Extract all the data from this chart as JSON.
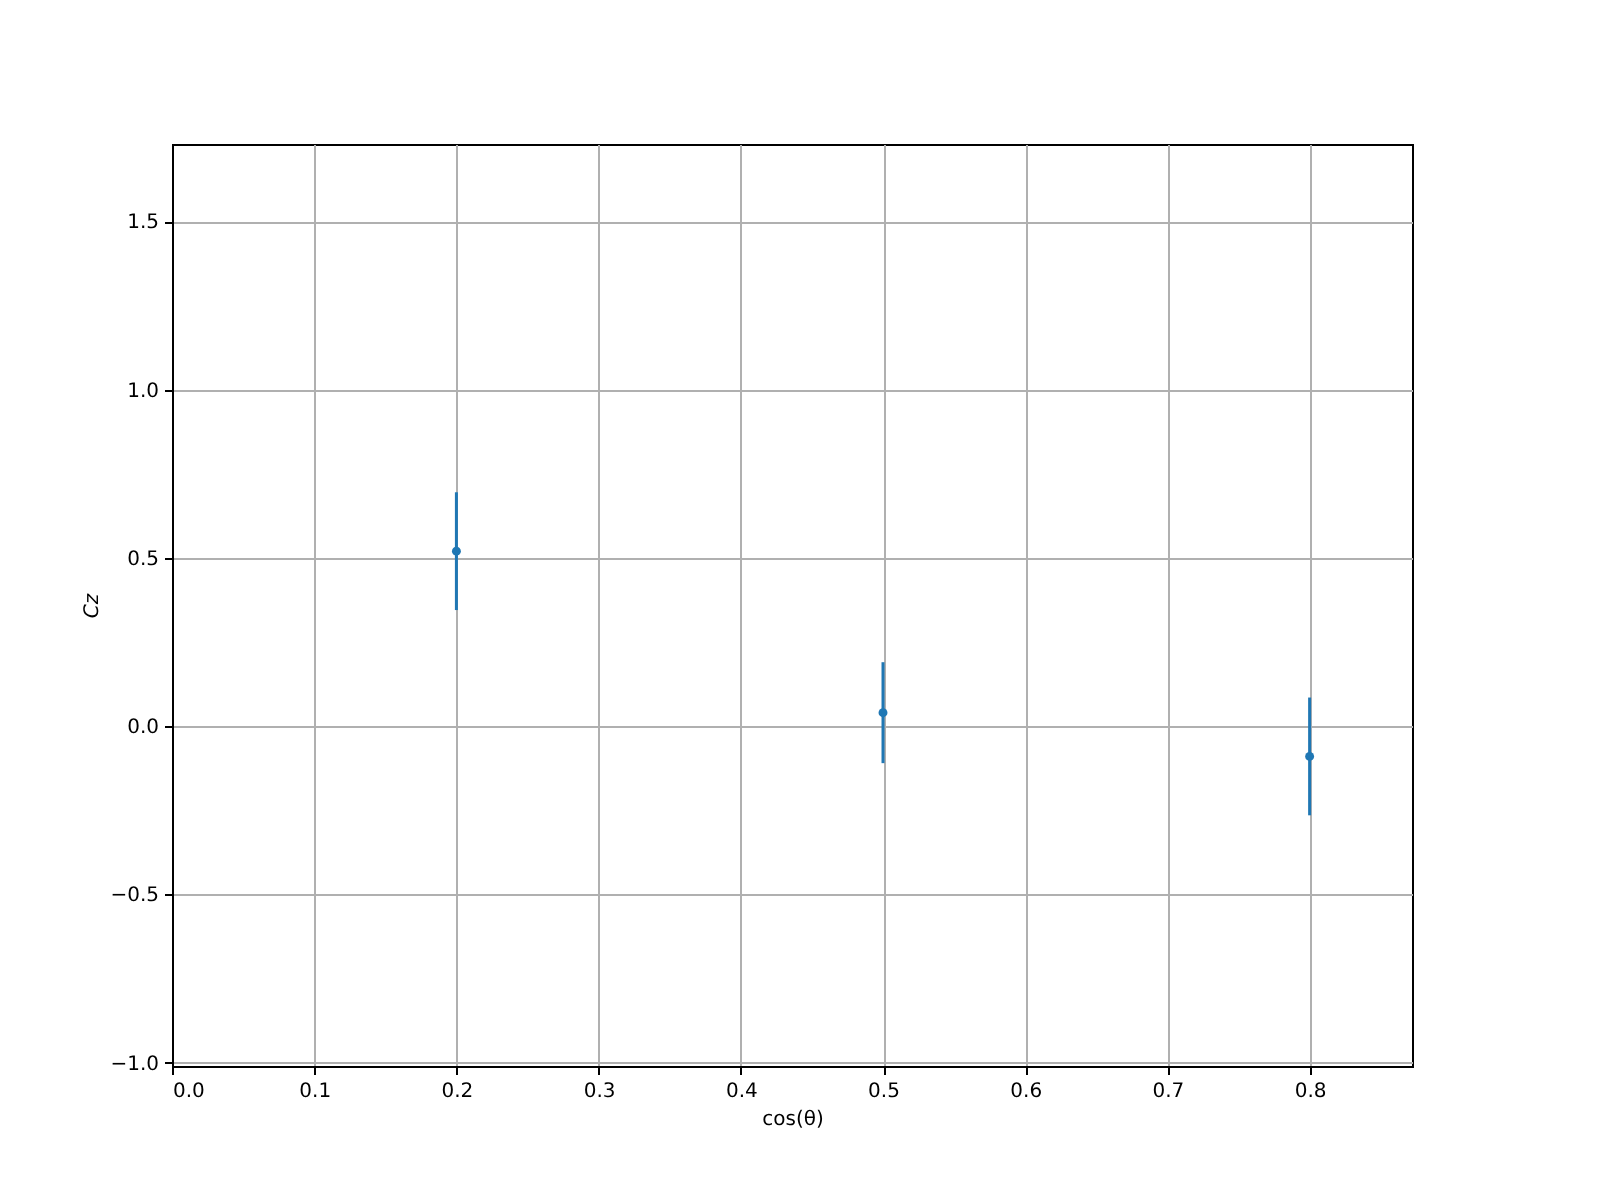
{
  "chart_data": {
    "type": "scatter",
    "xlabel": "cos(θ)",
    "ylabel": "Cz",
    "x": [
      0.2,
      0.5,
      0.8
    ],
    "series": [
      {
        "color": "#1f77b4",
        "values": [
          0.52,
          0.04,
          -0.09
        ],
        "errors": [
          0.175,
          0.15,
          0.175
        ]
      }
    ],
    "xlim": [
      0,
      0.872
    ],
    "ylim": [
      -1.01,
      1.73
    ],
    "xticks": [
      {
        "value": 0,
        "label": "0.0"
      },
      {
        "value": 0.1,
        "label": "0.1"
      },
      {
        "value": 0.2,
        "label": "0.2"
      },
      {
        "value": 0.3,
        "label": "0.3"
      },
      {
        "value": 0.4,
        "label": "0.4"
      },
      {
        "value": 0.5,
        "label": "0.5"
      },
      {
        "value": 0.6,
        "label": "0.6"
      },
      {
        "value": 0.7,
        "label": "0.7"
      },
      {
        "value": 0.8,
        "label": "0.8"
      }
    ],
    "yticks": [
      {
        "value": -1,
        "label": "−1.0"
      },
      {
        "value": -0.5,
        "label": "−0.5"
      },
      {
        "value": 0,
        "label": "0.0"
      },
      {
        "value": 0.5,
        "label": "0.5"
      },
      {
        "value": 1,
        "label": "1.0"
      },
      {
        "value": 1.5,
        "label": "1.5"
      }
    ],
    "grid": true,
    "marker": "circle"
  }
}
